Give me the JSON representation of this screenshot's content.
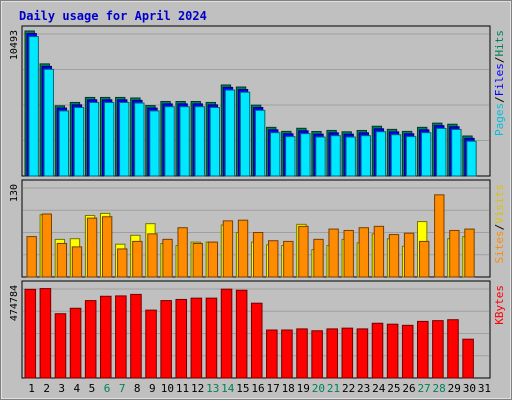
{
  "chart_data": [
    {
      "type": "bar",
      "panel": "hits-files-pages",
      "title": "Daily usage for April 2024",
      "categories": [
        "1",
        "2",
        "3",
        "4",
        "5",
        "6",
        "7",
        "8",
        "9",
        "10",
        "11",
        "12",
        "13",
        "14",
        "15",
        "16",
        "17",
        "18",
        "19",
        "20",
        "21",
        "22",
        "23",
        "24",
        "25",
        "26",
        "27",
        "28",
        "29",
        "30",
        "31"
      ],
      "weekend_days": [
        "6",
        "7",
        "13",
        "14",
        "20",
        "21",
        "27",
        "28"
      ],
      "ylim": [
        0,
        10493
      ],
      "y_tick_labels": [
        "10493"
      ],
      "right_labels": [
        "Pages",
        "/",
        "Files",
        "/",
        "Hits"
      ],
      "grid": true,
      "series": [
        {
          "name": "Hits",
          "color": "#00805c",
          "values": [
            10420,
            7990,
            4890,
            5140,
            5510,
            5510,
            5510,
            5470,
            4910,
            5210,
            5210,
            5210,
            5140,
            6430,
            6280,
            4940,
            3300,
            3000,
            3230,
            2990,
            3070,
            2970,
            3070,
            3380,
            3150,
            3000,
            3300,
            3610,
            3530,
            2660,
            0
          ]
        },
        {
          "name": "Files",
          "color": "#0000ff",
          "values": [
            10380,
            7950,
            4870,
            5110,
            5480,
            5480,
            5480,
            5440,
            4870,
            5180,
            5180,
            5180,
            5110,
            6400,
            6240,
            4910,
            3260,
            2970,
            3190,
            2940,
            3040,
            2940,
            3040,
            3340,
            3110,
            2970,
            3260,
            3570,
            3490,
            2630,
            0
          ]
        },
        {
          "name": "Pages",
          "color": "#00e8ff",
          "values": [
            10300,
            7880,
            4810,
            5060,
            5430,
            5430,
            5430,
            5390,
            4810,
            5120,
            5120,
            5120,
            5060,
            6350,
            6190,
            4850,
            3200,
            2910,
            3130,
            2880,
            2980,
            2880,
            2980,
            3270,
            3050,
            2910,
            3200,
            3510,
            3440,
            2570,
            0
          ]
        }
      ]
    },
    {
      "type": "bar",
      "panel": "visits-sites",
      "categories": [
        "1",
        "2",
        "3",
        "4",
        "5",
        "6",
        "7",
        "8",
        "9",
        "10",
        "11",
        "12",
        "13",
        "14",
        "15",
        "16",
        "17",
        "18",
        "19",
        "20",
        "21",
        "22",
        "23",
        "24",
        "25",
        "26",
        "27",
        "28",
        "29",
        "30",
        "31"
      ],
      "ylim": [
        0,
        130
      ],
      "y_tick_labels": [
        "130"
      ],
      "right_labels": [
        "Sites",
        "/",
        "Visits"
      ],
      "grid": true,
      "series": [
        {
          "name": "Visits",
          "color": "#ffff00",
          "values": [
            0,
            88,
            52,
            53,
            87,
            90,
            45,
            58,
            75,
            46,
            43,
            48,
            48,
            73,
            62,
            48,
            44,
            43,
            74,
            37,
            43,
            52,
            47,
            60,
            53,
            42,
            78,
            0,
            53,
            56,
            0
          ]
        },
        {
          "name": "Sites",
          "color": "#ff8c00",
          "values": [
            59,
            92,
            49,
            44,
            86,
            88,
            41,
            52,
            63,
            55,
            72,
            49,
            51,
            82,
            83,
            65,
            53,
            52,
            74,
            55,
            70,
            68,
            72,
            74,
            62,
            64,
            52,
            120,
            68,
            70,
            0
          ]
        }
      ]
    },
    {
      "type": "bar",
      "panel": "kbytes",
      "categories": [
        "1",
        "2",
        "3",
        "4",
        "5",
        "6",
        "7",
        "8",
        "9",
        "10",
        "11",
        "12",
        "13",
        "14",
        "15",
        "16",
        "17",
        "18",
        "19",
        "20",
        "21",
        "22",
        "23",
        "24",
        "25",
        "26",
        "27",
        "28",
        "29",
        "30",
        "31"
      ],
      "ylim": [
        0,
        474784
      ],
      "y_tick_labels": [
        "474784"
      ],
      "right_labels": [
        "KBytes"
      ],
      "grid": true,
      "series": [
        {
          "name": "KBytes",
          "color": "#ff0000",
          "values": [
            473000,
            477000,
            343000,
            372000,
            413000,
            436000,
            438000,
            446000,
            362000,
            413000,
            419000,
            426000,
            426000,
            474000,
            468000,
            399000,
            256000,
            256000,
            262000,
            252000,
            262000,
            266000,
            262000,
            292000,
            287000,
            281000,
            302000,
            306000,
            311000,
            207000,
            0
          ]
        }
      ]
    }
  ]
}
